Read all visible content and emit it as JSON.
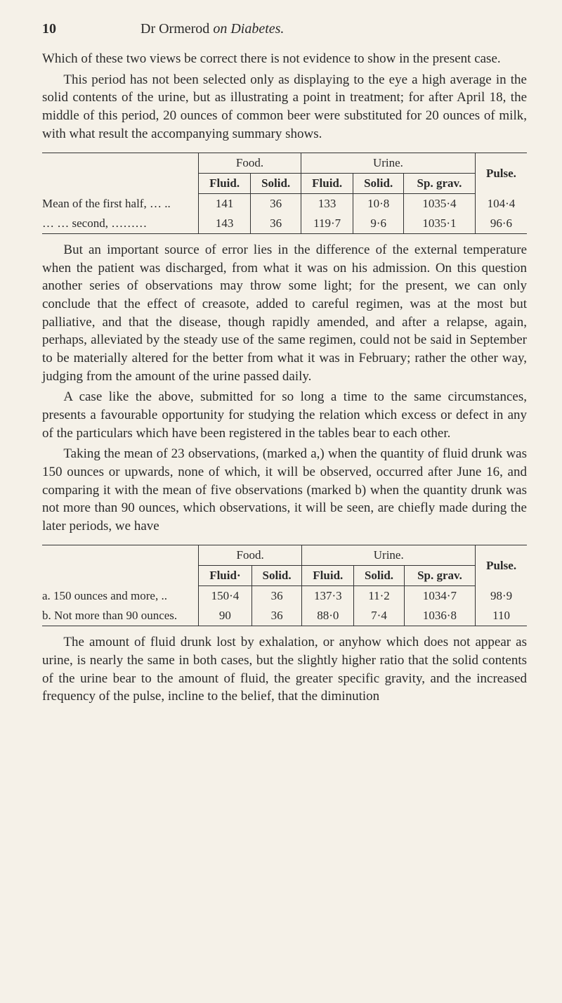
{
  "header": {
    "page_number": "10",
    "author": "Dr Ormerod",
    "on_word": "on",
    "subject": "Diabetes."
  },
  "paragraphs": {
    "p1": "Which of these two views be correct there is not evidence to show in the present case.",
    "p2": "This period has not been selected only as displaying to the eye a high average in the solid contents of the urine, but as illustrating a point in treatment; for after April 18, the middle of this period, 20 ounces of common beer were substituted for 20 ounces of milk, with what result the accompanying summary shows.",
    "p3": "But an important source of error lies in the difference of the external temperature when the patient was discharged, from what it was on his admission. On this question another series of observations may throw some light; for the present, we can only conclude that the effect of creasote, added to careful regimen, was at the most but palliative, and that the disease, though rapidly amended, and after a relapse, again, perhaps, alleviated by the steady use of the same regimen, could not be said in September to be materially altered for the better from what it was in February; rather the other way, judging from the amount of the urine passed daily.",
    "p4": "A case like the above, submitted for so long a time to the same circumstances, presents a favourable opportunity for studying the relation which excess or defect in any of the particulars which have been registered in the tables bear to each other.",
    "p5": "Taking the mean of 23 observations, (marked a,) when the quantity of fluid drunk was 150 ounces or upwards, none of which, it will be observed, occurred after June 16, and comparing it with the mean of five observations (marked b) when the quantity drunk was not more than 90 ounces, which observations, it will be seen, are chiefly made during the later periods, we have",
    "p6": "The amount of fluid drunk lost by exhalation, or anyhow which does not appear as urine, is nearly the same in both cases, but the slightly higher ratio that the solid contents of the urine bear to the amount of fluid, the greater specific gravity, and the increased frequency of the pulse, incline to the belief, that the diminution"
  },
  "table1": {
    "group_food": "Food.",
    "group_urine": "Urine.",
    "col_fluid": "Fluid.",
    "col_solid": "Solid.",
    "col_spgrav": "Sp. grav.",
    "col_pulse": "Pulse.",
    "rows": [
      {
        "label": "Mean of the first half, … ..",
        "food_fluid": "141",
        "food_solid": "36",
        "urine_fluid": "133",
        "urine_solid": "10·8",
        "spgrav": "1035·4",
        "pulse": "104·4"
      },
      {
        "label": "…  … second, ………",
        "food_fluid": "143",
        "food_solid": "36",
        "urine_fluid": "119·7",
        "urine_solid": "9·6",
        "spgrav": "1035·1",
        "pulse": "96·6"
      }
    ]
  },
  "table2": {
    "group_food": "Food.",
    "group_urine": "Urine.",
    "col_fluid_food": "Fluid·",
    "col_solid": "Solid.",
    "col_fluid_urine": "Fluid.",
    "col_spgrav": "Sp. grav.",
    "col_pulse": "Pulse.",
    "rows": [
      {
        "label": "a. 150 ounces and more,  ..",
        "food_fluid": "150·4",
        "food_solid": "36",
        "urine_fluid": "137·3",
        "urine_solid": "11·2",
        "spgrav": "1034·7",
        "pulse": "98·9"
      },
      {
        "label": "b. Not more than 90 ounces.",
        "food_fluid": "90",
        "food_solid": "36",
        "urine_fluid": "88·0",
        "urine_solid": "7·4",
        "spgrav": "1036·8",
        "pulse": "110"
      }
    ]
  }
}
